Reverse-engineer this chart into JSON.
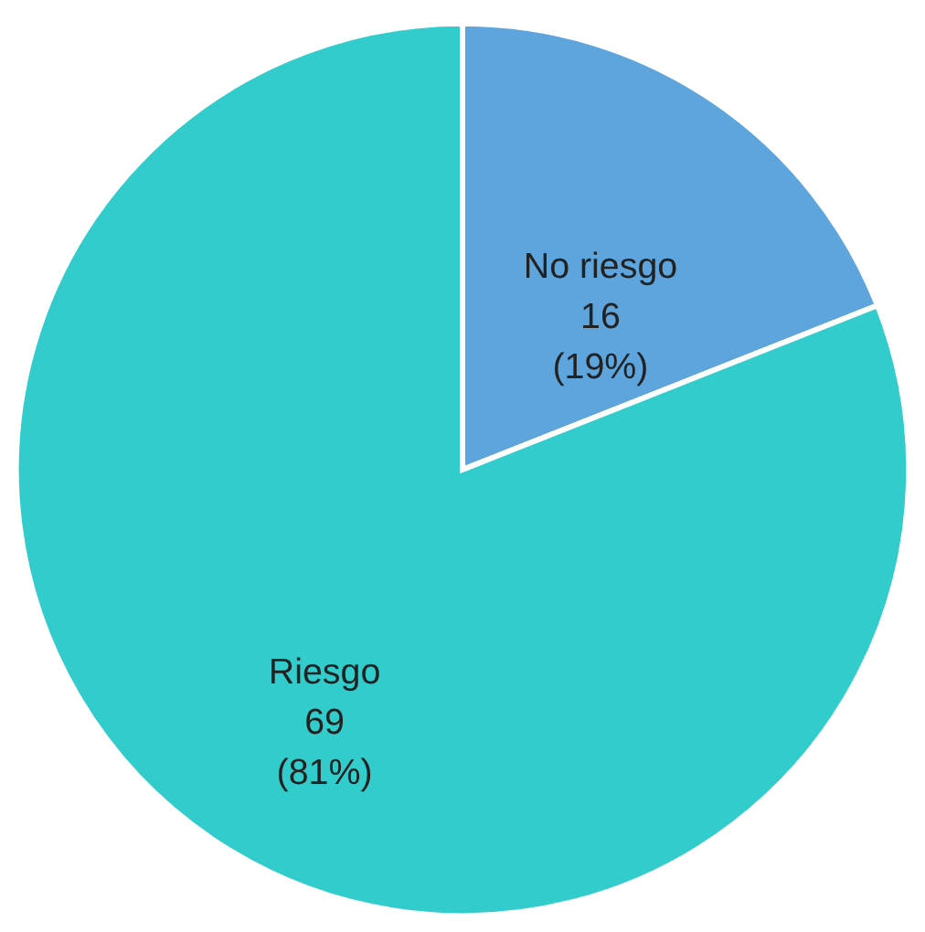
{
  "chart_data": {
    "type": "pie",
    "categories": [
      "No riesgo",
      "Riesgo"
    ],
    "values": [
      19,
      81
    ],
    "value_labels": [
      "16\n(19%)",
      "69\n(81%)"
    ],
    "colors": [
      "#5ea5dd",
      "#33cccc"
    ],
    "legend": false
  }
}
